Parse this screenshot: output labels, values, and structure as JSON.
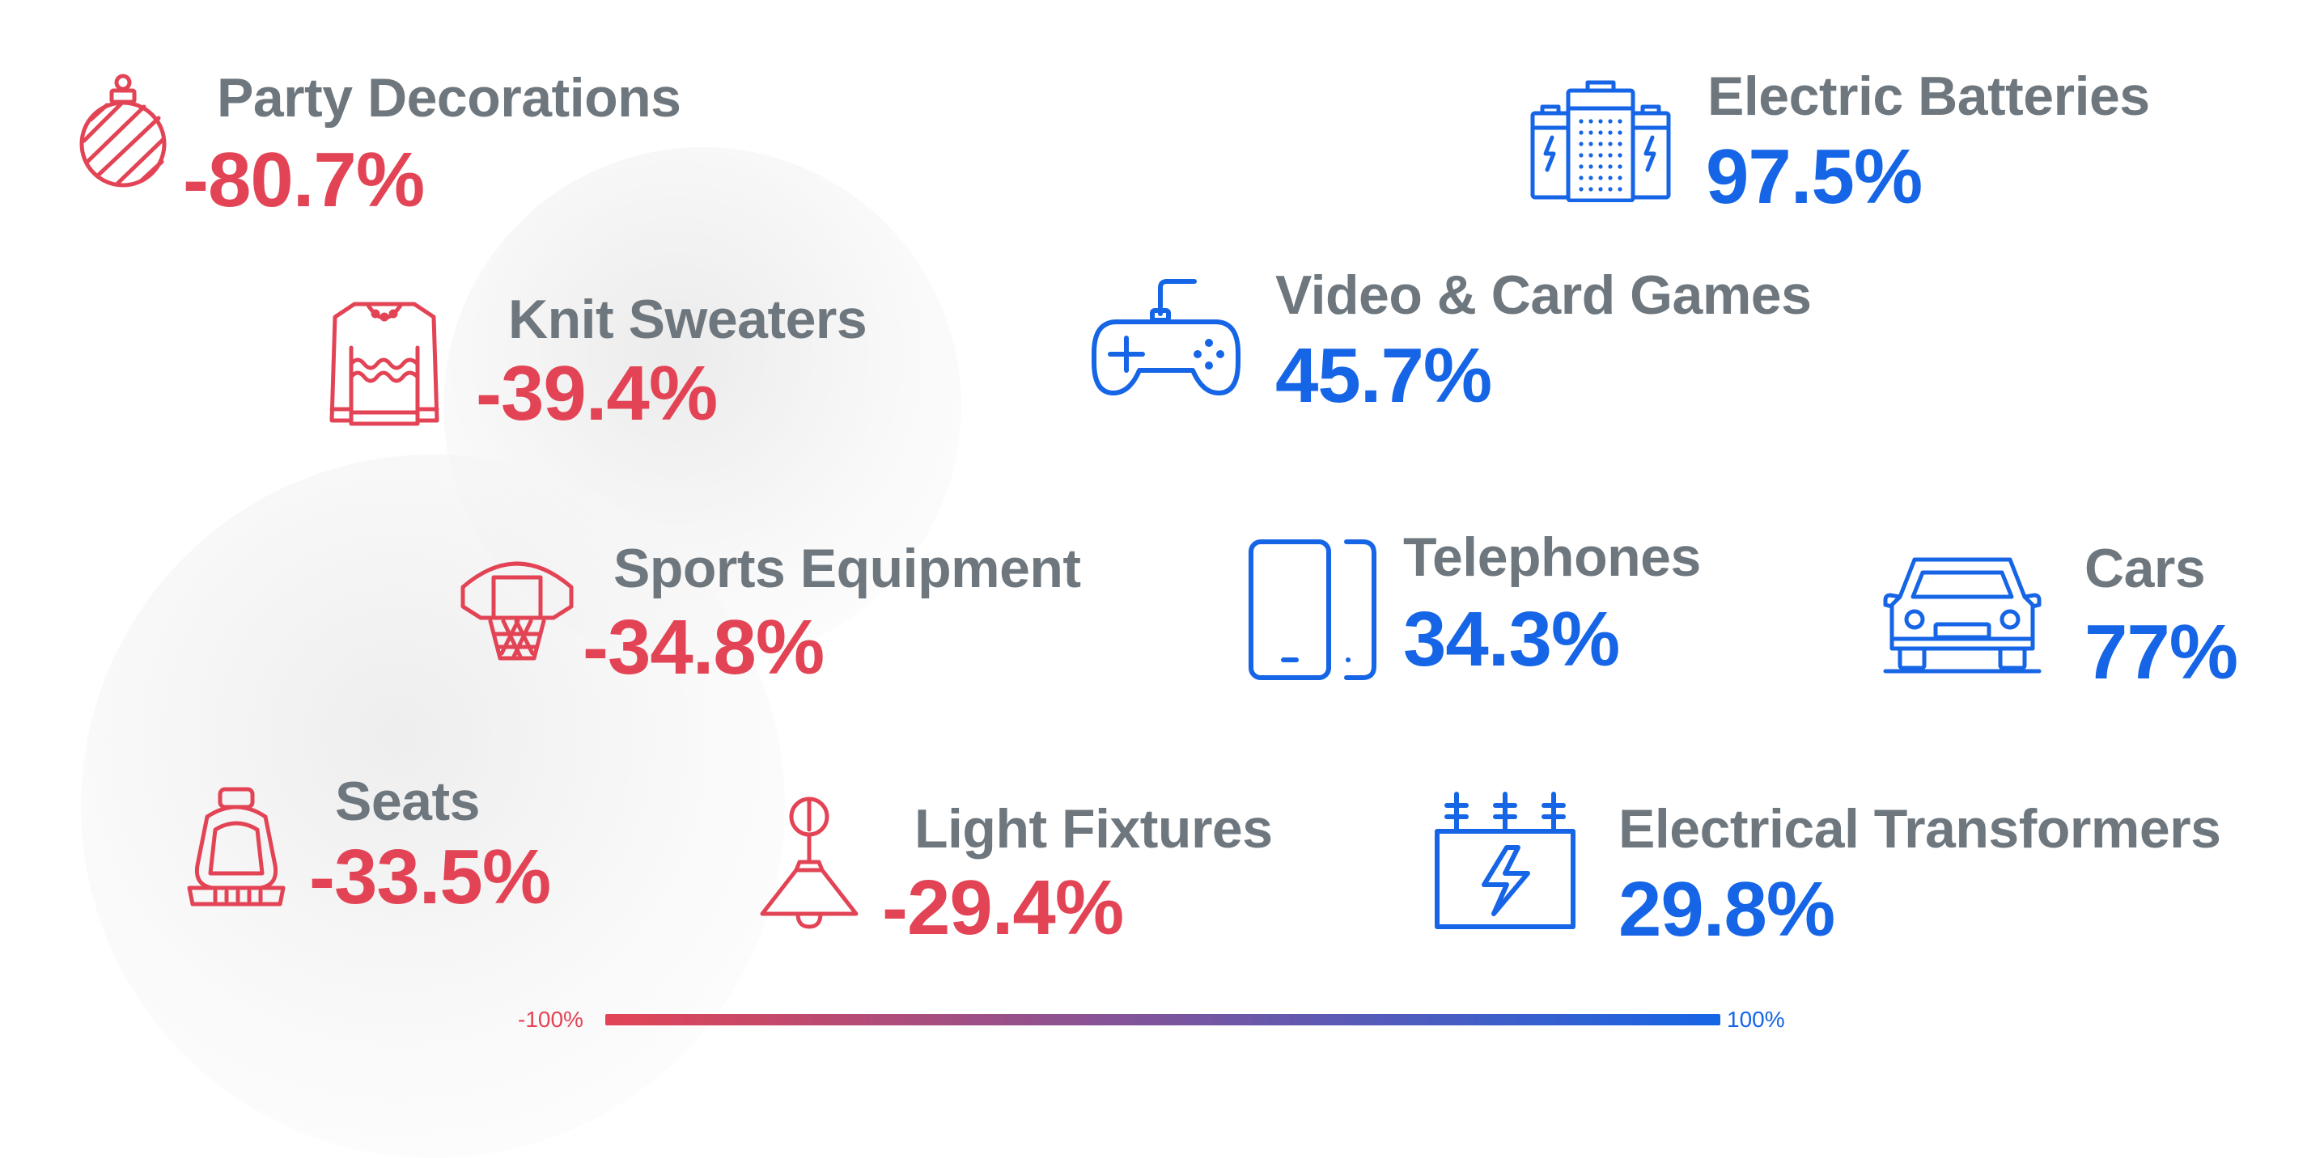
{
  "colors": {
    "negative": "#e34455",
    "positive": "#1565e6",
    "label": "#6e777e"
  },
  "items": [
    {
      "id": "party-decorations",
      "label": "Party Decorations",
      "value": "-80.7%",
      "sign": "negative",
      "icon": "ornament-icon"
    },
    {
      "id": "knit-sweaters",
      "label": "Knit Sweaters",
      "value": "-39.4%",
      "sign": "negative",
      "icon": "sweater-icon"
    },
    {
      "id": "sports-equipment",
      "label": "Sports Equipment",
      "value": "-34.8%",
      "sign": "negative",
      "icon": "basketball-hoop-icon"
    },
    {
      "id": "seats",
      "label": "Seats",
      "value": "-33.5%",
      "sign": "negative",
      "icon": "seat-icon"
    },
    {
      "id": "light-fixtures",
      "label": "Light Fixtures",
      "value": "-29.4%",
      "sign": "negative",
      "icon": "pendant-lamp-icon"
    },
    {
      "id": "electric-batteries",
      "label": "Electric Batteries",
      "value": "97.5%",
      "sign": "positive",
      "icon": "batteries-icon"
    },
    {
      "id": "video-card-games",
      "label": "Video & Card Games",
      "value": "45.7%",
      "sign": "positive",
      "icon": "gamepad-icon"
    },
    {
      "id": "telephones",
      "label": "Telephones",
      "value": "34.3%",
      "sign": "positive",
      "icon": "smartphone-icon"
    },
    {
      "id": "cars",
      "label": "Cars",
      "value": "77%",
      "sign": "positive",
      "icon": "car-icon"
    },
    {
      "id": "electrical-transformers",
      "label": "Electrical Transformers",
      "value": "29.8%",
      "sign": "positive",
      "icon": "transformer-icon"
    }
  ],
  "scale": {
    "min_label": "-100%",
    "max_label": "100%"
  }
}
